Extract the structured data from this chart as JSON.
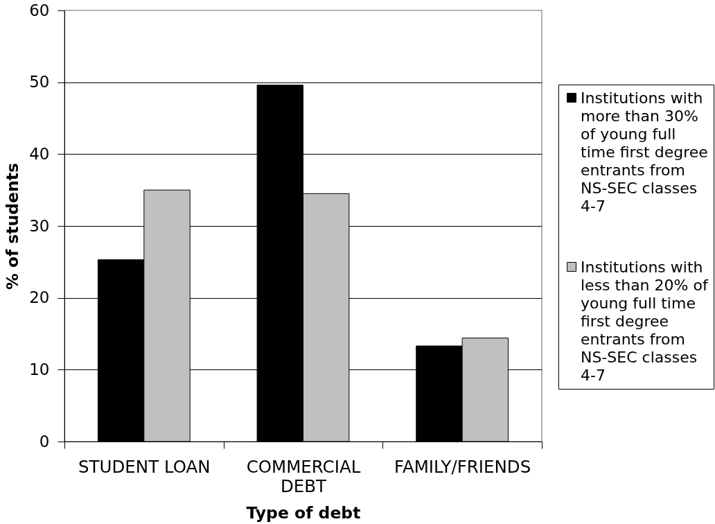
{
  "chart_data": {
    "type": "bar",
    "xlabel": "Type of debt",
    "ylabel": "% of students",
    "categories": [
      "STUDENT LOAN",
      "COMMERCIAL DEBT",
      "FAMILY/FRIENDS"
    ],
    "series": [
      {
        "name": "Institutions with more than 30% of young full time first degree entrants from NS-SEC classes 4-7",
        "color": "#000000",
        "values": [
          25.3,
          49.6,
          13.3
        ]
      },
      {
        "name": "Institutions with less than 20% of young full time first degree entrants from NS-SEC classes 4-7",
        "color": "#c0c0c0",
        "values": [
          35.0,
          34.5,
          14.4
        ]
      }
    ],
    "ylim": [
      0,
      60
    ],
    "yticks": [
      0,
      10,
      20,
      30,
      40,
      50,
      60
    ],
    "grid": "y",
    "legend": "right"
  }
}
